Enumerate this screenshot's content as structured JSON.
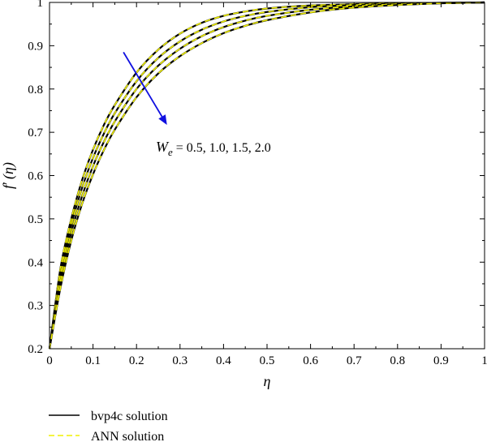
{
  "chart_data": {
    "type": "line",
    "title": "",
    "xlabel": "η",
    "ylabel_main": "f",
    "ylabel_prime": "′",
    "ylabel_arg": "(η)",
    "xlim": [
      0,
      1
    ],
    "ylim": [
      0.2,
      1.0
    ],
    "xticks": [
      "0",
      "0.1",
      "0.2",
      "0.3",
      "0.4",
      "0.5",
      "0.6",
      "0.7",
      "0.8",
      "0.9",
      "1"
    ],
    "yticks": [
      "0.2",
      "0.3",
      "0.4",
      "0.5",
      "0.6",
      "0.7",
      "0.8",
      "0.9",
      "1"
    ],
    "grid": false,
    "legend_position": "bottom-left",
    "legend": [
      {
        "label": "bvp4c solution",
        "color": "#000000",
        "style": "solid"
      },
      {
        "label": "ANN solution",
        "color": "#f0f000",
        "style": "dashed"
      }
    ],
    "annotation": {
      "symbol": "W",
      "subscript": "e",
      "text": " = 0.5, 1.0, 1.5, 2.0",
      "arrow_color": "#1010e0",
      "arrow_from": [
        0.17,
        0.885
      ],
      "arrow_to": [
        0.27,
        0.717
      ]
    },
    "x": [
      0,
      0.025,
      0.05,
      0.075,
      0.1,
      0.125,
      0.15,
      0.2,
      0.25,
      0.3,
      0.35,
      0.4,
      0.45,
      0.5,
      0.6,
      0.7,
      0.8,
      0.9,
      1.0
    ],
    "series": [
      {
        "We": 0.5,
        "values": [
          0.2,
          0.385,
          0.5,
          0.59,
          0.66,
          0.717,
          0.763,
          0.838,
          0.891,
          0.928,
          0.953,
          0.969,
          0.979,
          0.986,
          0.993,
          0.996,
          0.998,
          0.999,
          1.0
        ]
      },
      {
        "We": 1.0,
        "values": [
          0.2,
          0.37,
          0.485,
          0.572,
          0.641,
          0.697,
          0.744,
          0.818,
          0.872,
          0.91,
          0.937,
          0.956,
          0.969,
          0.978,
          0.989,
          0.994,
          0.997,
          0.999,
          1.0
        ]
      },
      {
        "We": 1.5,
        "values": [
          0.2,
          0.355,
          0.468,
          0.553,
          0.622,
          0.678,
          0.725,
          0.8,
          0.854,
          0.893,
          0.922,
          0.943,
          0.958,
          0.969,
          0.983,
          0.991,
          0.996,
          0.998,
          1.0
        ]
      },
      {
        "We": 2.0,
        "values": [
          0.2,
          0.34,
          0.45,
          0.535,
          0.603,
          0.659,
          0.706,
          0.781,
          0.836,
          0.876,
          0.906,
          0.929,
          0.946,
          0.959,
          0.977,
          0.988,
          0.994,
          0.998,
          1.0
        ]
      }
    ],
    "colors": {
      "bvp4c": "#000000",
      "ann": "#f0f000",
      "arrow": "#1010e0"
    }
  }
}
